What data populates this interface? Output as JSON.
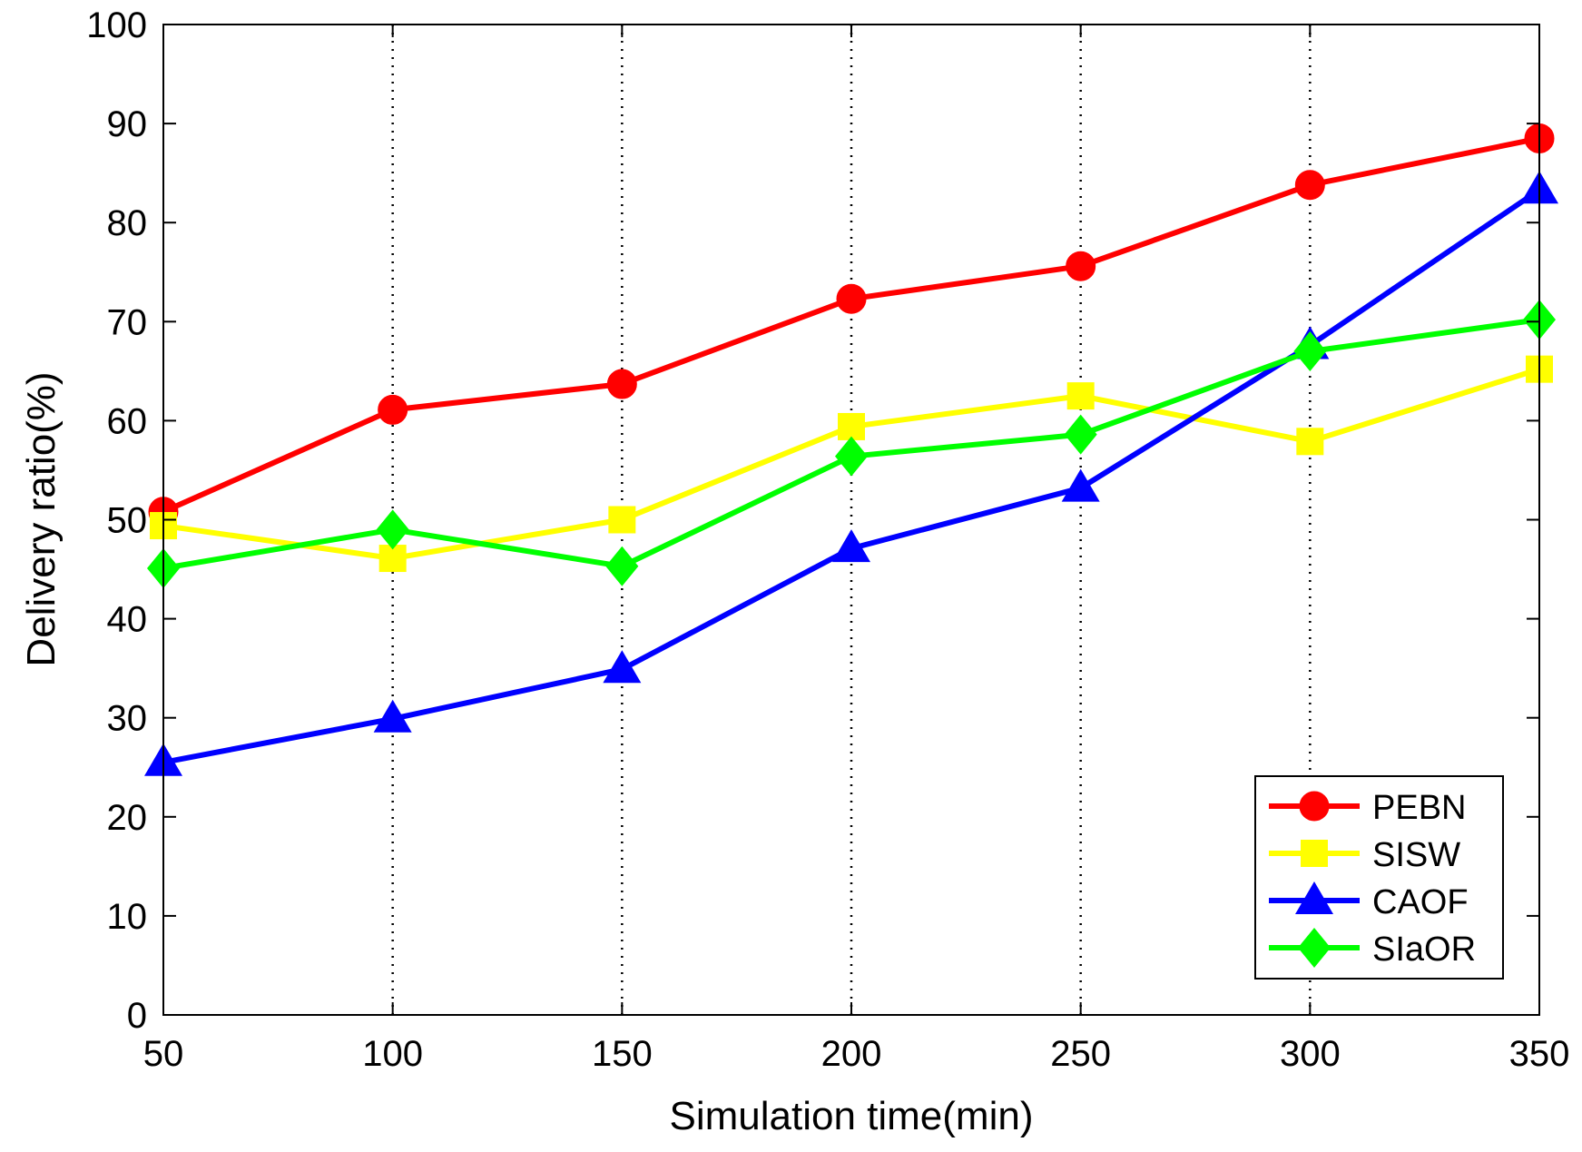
{
  "chart_data": {
    "type": "line",
    "title": "",
    "xlabel": "Simulation time(min)",
    "ylabel": "Delivery ratio(%)",
    "xlim": [
      50,
      350
    ],
    "ylim": [
      0,
      100
    ],
    "x": [
      50,
      100,
      150,
      200,
      250,
      300,
      350
    ],
    "xticks": [
      50,
      100,
      150,
      200,
      250,
      300,
      350
    ],
    "yticks": [
      0,
      10,
      20,
      30,
      40,
      50,
      60,
      70,
      80,
      90,
      100
    ],
    "grid": "vertical dotted",
    "legend_position": "bottom-right",
    "series": [
      {
        "name": "PEBN",
        "color": "#ff0000",
        "marker": "circle",
        "values": [
          50.8,
          61.1,
          63.7,
          72.3,
          75.6,
          83.8,
          88.5
        ]
      },
      {
        "name": "SISW",
        "color": "#ffff00",
        "marker": "square",
        "values": [
          49.4,
          46.1,
          50.0,
          59.4,
          62.5,
          57.9,
          65.2
        ]
      },
      {
        "name": "CAOF",
        "color": "#0000ff",
        "marker": "triangle",
        "values": [
          25.5,
          29.9,
          34.9,
          47.1,
          53.2,
          67.6,
          83.3
        ]
      },
      {
        "name": "SIaOR",
        "color": "#00ff00",
        "marker": "diamond",
        "values": [
          45.1,
          49.0,
          45.3,
          56.4,
          58.6,
          67.0,
          70.2
        ]
      }
    ]
  }
}
